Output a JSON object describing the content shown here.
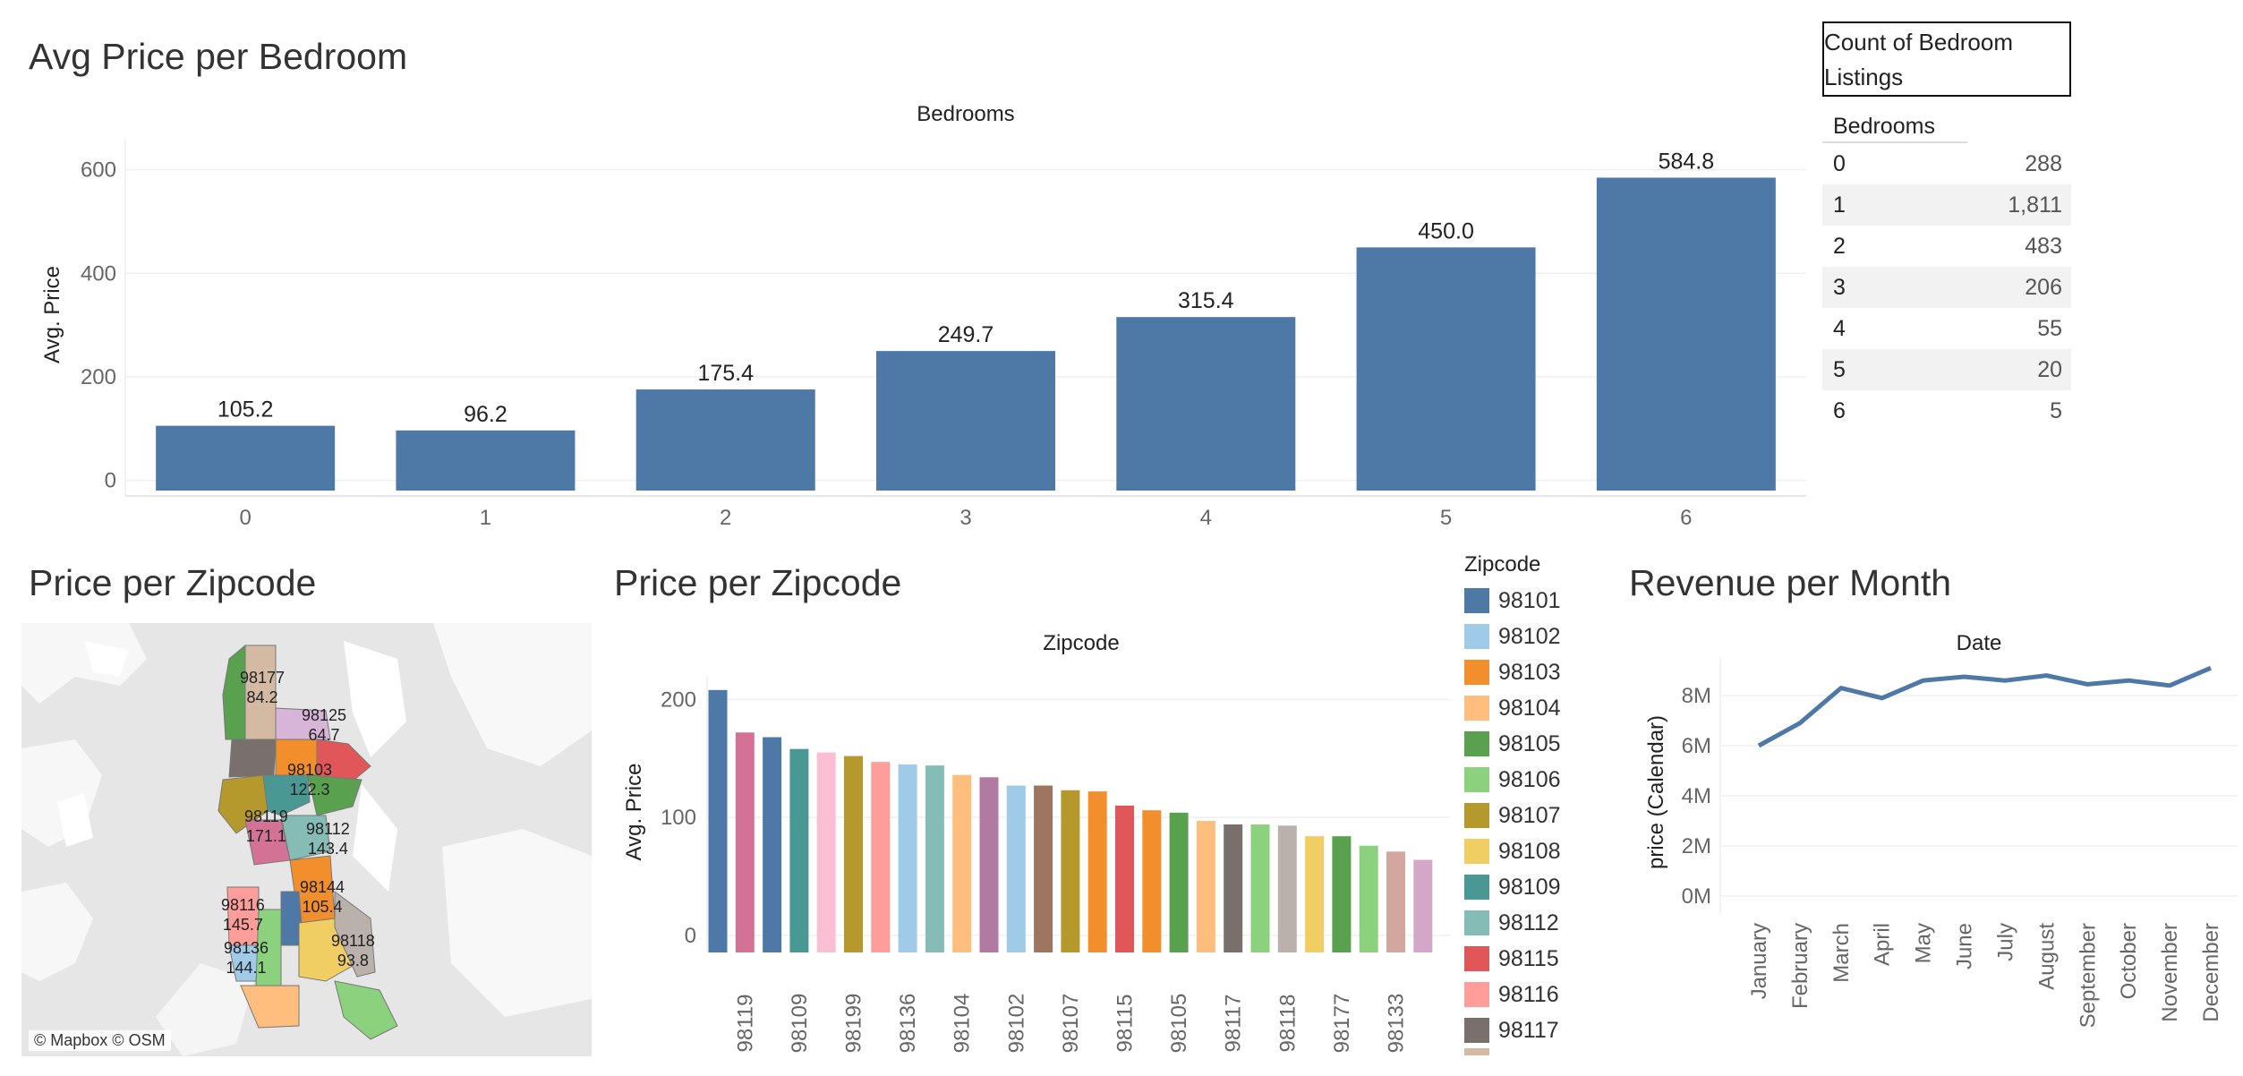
{
  "bedroom_chart": {
    "title": "Avg Price per Bedroom",
    "chart_data": {
      "type": "bar",
      "title": "Avg Price per Bedroom",
      "xlabel": "Bedrooms",
      "ylabel": "Avg. Price",
      "categories": [
        "0",
        "1",
        "2",
        "3",
        "4",
        "5",
        "6"
      ],
      "values": [
        105.2,
        96.2,
        175.4,
        249.7,
        315.4,
        450.0,
        584.8
      ],
      "value_labels": [
        "105.2",
        "96.2",
        "175.4",
        "249.7",
        "315.4",
        "450.0",
        "584.8"
      ],
      "y_ticks": [
        0,
        200,
        400,
        600
      ],
      "ylim": [
        -20,
        660
      ],
      "color": "#4e79a7"
    }
  },
  "count_table": {
    "title": "Count of Bedroom Listings",
    "column_header": "Bedrooms",
    "rows": [
      {
        "bedrooms": "0",
        "count": "288"
      },
      {
        "bedrooms": "1",
        "count": "1,811"
      },
      {
        "bedrooms": "2",
        "count": "483"
      },
      {
        "bedrooms": "3",
        "count": "206"
      },
      {
        "bedrooms": "4",
        "count": "55"
      },
      {
        "bedrooms": "5",
        "count": "20"
      },
      {
        "bedrooms": "6",
        "count": "5"
      }
    ]
  },
  "zip_map": {
    "title": "Price per Zipcode",
    "credit": "© Mapbox © OSM",
    "labels": [
      {
        "zip": "98177",
        "price": "84.2"
      },
      {
        "zip": "98125",
        "price": "64.7"
      },
      {
        "zip": "98103",
        "price": "122.3"
      },
      {
        "zip": "98119",
        "price": "171.1"
      },
      {
        "zip": "98112",
        "price": "143.4"
      },
      {
        "zip": "98144",
        "price": "105.4"
      },
      {
        "zip": "98116",
        "price": "145.7"
      },
      {
        "zip": "98136",
        "price": "144.1"
      },
      {
        "zip": "98118",
        "price": "93.8"
      }
    ]
  },
  "zip_bar": {
    "title": "Price per Zipcode",
    "chart_data": {
      "type": "bar",
      "title": "Price per Zipcode",
      "xlabel": "Zipcode",
      "ylabel": "Avg. Price",
      "y_ticks": [
        0,
        100,
        200
      ],
      "ylim": [
        -10,
        220
      ],
      "tick_labels": [
        "98119",
        "98109",
        "98199",
        "98136",
        "98104",
        "98102",
        "98107",
        "98115",
        "98105",
        "98117",
        "98118",
        "98177",
        "98133"
      ],
      "values": [
        208,
        172,
        168,
        158,
        155,
        152,
        147,
        145,
        144,
        136,
        134,
        127,
        127,
        123,
        122,
        110,
        106,
        104,
        97,
        94,
        94,
        93,
        84,
        84,
        76,
        71,
        64
      ],
      "colors": [
        "#4e79a7",
        "#d37295",
        "#4e79a7",
        "#499894",
        "#fabfd2",
        "#b6992d",
        "#ff9d9a",
        "#a0cbe8",
        "#86bcb6",
        "#ffbe7d",
        "#b07aa1",
        "#a0cbe8",
        "#9d7660",
        "#b6992d",
        "#f28e2b",
        "#e15759",
        "#f28e2b",
        "#59a14f",
        "#ffbe7d",
        "#79706e",
        "#8cd17d",
        "#bab0ac",
        "#f1ce63",
        "#59a14f",
        "#8cd17d",
        "#d4a6a0",
        "#d4a6c8"
      ]
    }
  },
  "legend": {
    "title": "Zipcode",
    "items": [
      {
        "label": "98101",
        "color": "#4e79a7"
      },
      {
        "label": "98102",
        "color": "#a0cbe8"
      },
      {
        "label": "98103",
        "color": "#f28e2b"
      },
      {
        "label": "98104",
        "color": "#ffbe7d"
      },
      {
        "label": "98105",
        "color": "#59a14f"
      },
      {
        "label": "98106",
        "color": "#8cd17d"
      },
      {
        "label": "98107",
        "color": "#b6992d"
      },
      {
        "label": "98108",
        "color": "#f1ce63"
      },
      {
        "label": "98109",
        "color": "#499894"
      },
      {
        "label": "98112",
        "color": "#86bcb6"
      },
      {
        "label": "98115",
        "color": "#e15759"
      },
      {
        "label": "98116",
        "color": "#ff9d9a"
      },
      {
        "label": "98117",
        "color": "#79706e"
      }
    ]
  },
  "revenue_chart": {
    "title": "Revenue per Month",
    "chart_data": {
      "type": "line",
      "title": "Revenue per Month",
      "xlabel": "Date",
      "ylabel": "price (Calendar)",
      "categories": [
        "January",
        "February",
        "March",
        "April",
        "May",
        "June",
        "July",
        "August",
        "September",
        "October",
        "November",
        "December"
      ],
      "values": [
        6.0,
        6.9,
        8.3,
        7.9,
        8.6,
        8.75,
        8.6,
        8.8,
        8.45,
        8.6,
        8.4,
        9.1
      ],
      "unit": "M",
      "y_ticks": [
        0,
        2,
        4,
        6,
        8
      ],
      "y_tick_labels": [
        "0M",
        "2M",
        "4M",
        "6M",
        "8M"
      ],
      "ylim": [
        -0.5,
        9.5
      ],
      "color": "#4e79a7"
    }
  }
}
